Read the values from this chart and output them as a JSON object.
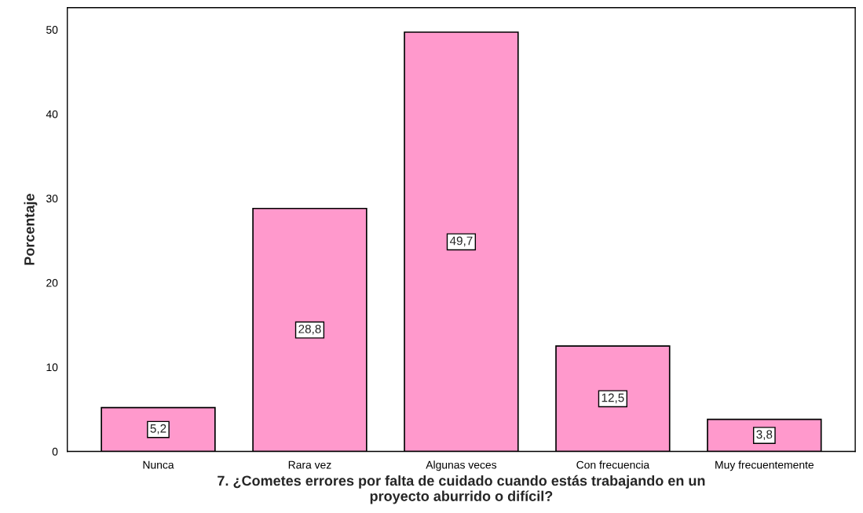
{
  "chart_data": {
    "type": "bar",
    "xlabel": "7. ¿Cometes errores por falta de cuidado cuando estás trabajando en un\nproyecto aburrido o difícil?",
    "ylabel": "Porcentaje",
    "categories": [
      "Nunca",
      "Rara vez",
      "Algunas veces",
      "Con frecuencia",
      "Muy frecuentemente"
    ],
    "values": [
      5.2,
      28.8,
      49.7,
      12.5,
      3.8
    ],
    "value_labels": [
      "5,2",
      "28,8",
      "49,7",
      "12,5",
      "3,8"
    ],
    "color": "#ff99cc",
    "ylim": [
      0,
      52.6
    ],
    "yticks": [
      0,
      10,
      20,
      30,
      40,
      50
    ],
    "grid": false
  }
}
